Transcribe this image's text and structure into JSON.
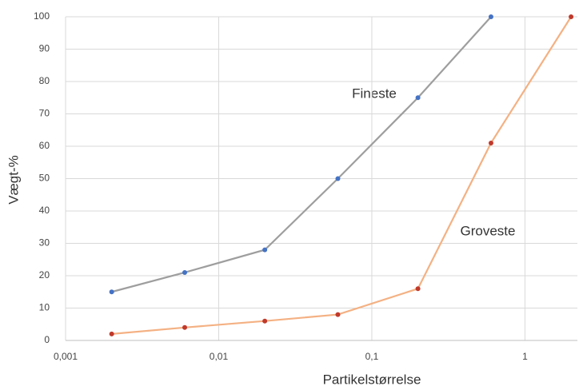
{
  "chart_data": {
    "type": "line",
    "xlabel": "Partikelstørrelse",
    "ylabel": "Vægt-%",
    "annotations": [
      "Fineste",
      "Groveste"
    ],
    "xscale": "log",
    "grid": true,
    "xlim": [
      0.001,
      2.2
    ],
    "ylim": [
      0,
      100
    ],
    "xticks": [
      {
        "value": 0.001,
        "label": "0,001"
      },
      {
        "value": 0.01,
        "label": "0,01"
      },
      {
        "value": 0.1,
        "label": "0,1"
      },
      1
    ],
    "yticks": [
      0,
      10,
      20,
      30,
      40,
      50,
      60,
      70,
      80,
      90,
      100
    ],
    "series": [
      {
        "name": "Fineste",
        "color": "#9e9e9e",
        "marker_color": "#4472c4",
        "x": [
          0.002,
          0.006,
          0.02,
          0.06,
          0.2,
          0.6
        ],
        "values": [
          15,
          21,
          28,
          50,
          75,
          100
        ]
      },
      {
        "name": "Groveste",
        "color": "#f4b183",
        "marker_color": "#c0392b",
        "x": [
          0.002,
          0.006,
          0.02,
          0.06,
          0.2,
          0.6,
          2
        ],
        "values": [
          2,
          4,
          6,
          8,
          16,
          61,
          100
        ]
      }
    ]
  }
}
